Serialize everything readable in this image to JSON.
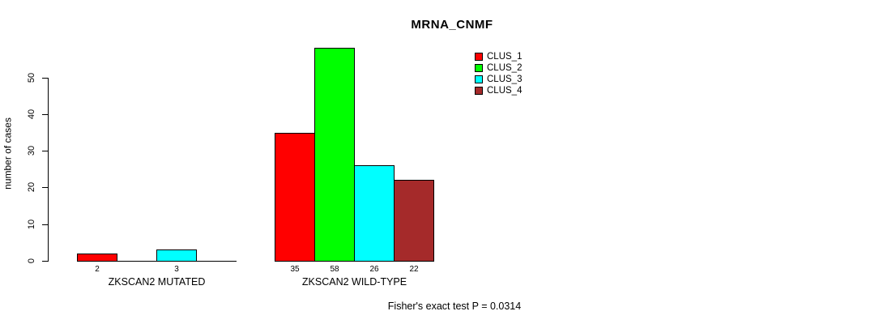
{
  "chart_data": {
    "type": "bar",
    "title": "MRNA_CNMF",
    "ylabel": "number of cases",
    "xlabel": "",
    "ylim": [
      0,
      58
    ],
    "yticks": [
      0,
      10,
      20,
      30,
      40,
      50
    ],
    "grid": false,
    "legend_position": "top-right",
    "categories": [
      "ZKSCAN2 MUTATED",
      "ZKSCAN2 WILD-TYPE"
    ],
    "series": [
      {
        "name": "CLUS_1",
        "color": "#ff0000",
        "values": [
          2,
          35
        ]
      },
      {
        "name": "CLUS_2",
        "color": "#00ff00",
        "values": [
          0,
          58
        ]
      },
      {
        "name": "CLUS_3",
        "color": "#00ffff",
        "values": [
          3,
          26
        ]
      },
      {
        "name": "CLUS_4",
        "color": "#a52a2a",
        "values": [
          0,
          22
        ]
      }
    ],
    "bar_value_labels": {
      "ZKSCAN2 MUTATED": [
        2,
        null,
        3,
        null
      ],
      "ZKSCAN2 WILD-TYPE": [
        35,
        58,
        26,
        22
      ]
    },
    "annotation": "Fisher's exact test P = 0.0314"
  }
}
